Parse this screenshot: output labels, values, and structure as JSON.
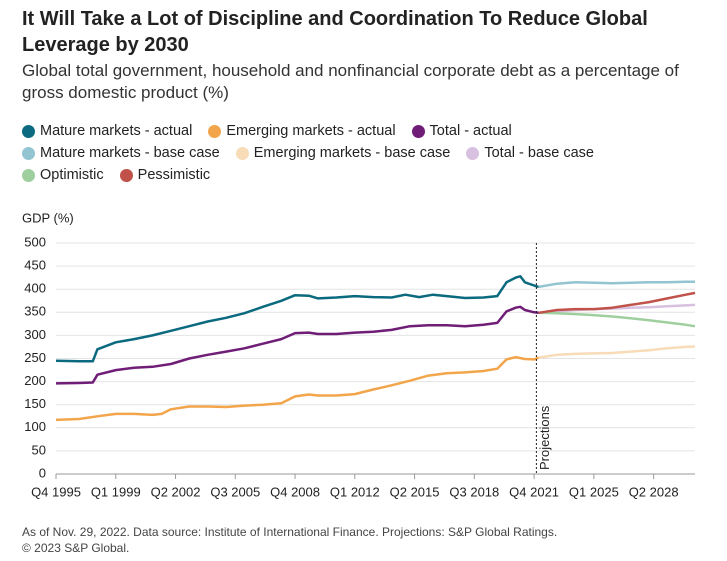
{
  "chart_data": {
    "type": "line",
    "title": "It Will Take a Lot of Discipline and Coordination To Reduce Global Leverage by 2030",
    "subtitle": "Global total government, household and nonfinancial corporate debt as a percentage of gross domestic product (%)",
    "y_label": "GDP (%)",
    "footnote": [
      "As of Nov. 29, 2022. Data source: Institute of International Finance. Projections: S&P Global Ratings.",
      "© 2023 S&P Global."
    ],
    "annotations": [
      {
        "text": "Projections",
        "x": 2021.875
      }
    ],
    "xlim": [
      1995.75,
      2030.5
    ],
    "xticks": [
      {
        "value": 1995.75,
        "label": "Q4 1995"
      },
      {
        "value": 1999.0,
        "label": "Q1 1999"
      },
      {
        "value": 2002.25,
        "label": "Q2 2002"
      },
      {
        "value": 2005.5,
        "label": "Q3 2005"
      },
      {
        "value": 2008.75,
        "label": "Q4 2008"
      },
      {
        "value": 2012.0,
        "label": "Q1 2012"
      },
      {
        "value": 2015.25,
        "label": "Q2 2015"
      },
      {
        "value": 2018.5,
        "label": "Q3 2018"
      },
      {
        "value": 2021.75,
        "label": "Q4 2021"
      },
      {
        "value": 2025.0,
        "label": "Q1 2025"
      },
      {
        "value": 2028.25,
        "label": "Q2 2028"
      }
    ],
    "ylim": [
      0,
      500
    ],
    "yticks": [
      0,
      50,
      100,
      150,
      200,
      250,
      300,
      350,
      400,
      450,
      500
    ],
    "grid": true,
    "series": [
      {
        "name": "Mature markets - actual",
        "color": "#0b6a7f",
        "x": [
          1995.75,
          1997,
          1997.75,
          1998,
          1999,
          2000,
          2001,
          2002,
          2003,
          2004,
          2005,
          2006,
          2007,
          2008,
          2008.75,
          2009.5,
          2010,
          2011,
          2012,
          2013,
          2014,
          2014.75,
          2015.5,
          2016.25,
          2017,
          2018,
          2019,
          2019.75,
          2020.25,
          2020.75,
          2021,
          2021.25,
          2021.75,
          2022
        ],
        "values": [
          245,
          244,
          244,
          270,
          285,
          292,
          300,
          310,
          320,
          330,
          338,
          348,
          362,
          375,
          387,
          386,
          380,
          382,
          385,
          383,
          382,
          388,
          383,
          388,
          385,
          381,
          382,
          385,
          415,
          425,
          428,
          415,
          408,
          405
        ]
      },
      {
        "name": "Emerging markets - actual",
        "color": "#f2a54a",
        "x": [
          1995.75,
          1997,
          1998,
          1999,
          2000,
          2001,
          2001.5,
          2002,
          2003,
          2004,
          2005,
          2006,
          2007,
          2008,
          2008.75,
          2009.5,
          2010,
          2011,
          2012,
          2013,
          2014,
          2015,
          2016,
          2017,
          2018,
          2019,
          2019.75,
          2020.25,
          2020.75,
          2021.25,
          2021.75,
          2022
        ],
        "values": [
          117,
          119,
          125,
          130,
          130,
          128,
          130,
          140,
          146,
          146,
          145,
          148,
          150,
          153,
          168,
          172,
          170,
          170,
          173,
          183,
          192,
          202,
          213,
          218,
          220,
          223,
          228,
          248,
          253,
          249,
          248,
          252
        ]
      },
      {
        "name": "Total - actual",
        "color": "#6f1d77",
        "x": [
          1995.75,
          1997,
          1997.75,
          1998,
          1999,
          2000,
          2001,
          2002,
          2003,
          2004,
          2005,
          2006,
          2007,
          2008,
          2008.75,
          2009.5,
          2010,
          2011,
          2012,
          2013,
          2014,
          2015,
          2016,
          2017,
          2018,
          2019,
          2019.75,
          2020.25,
          2020.75,
          2021,
          2021.25,
          2021.75,
          2022
        ],
        "values": [
          196,
          197,
          198,
          215,
          225,
          230,
          232,
          238,
          250,
          258,
          265,
          272,
          282,
          292,
          305,
          306,
          303,
          303,
          306,
          308,
          312,
          320,
          322,
          322,
          320,
          323,
          327,
          352,
          360,
          362,
          355,
          350,
          349
        ]
      },
      {
        "name": "Mature markets - base case",
        "color": "#93c4d1",
        "x": [
          2022,
          2023,
          2024,
          2025,
          2026,
          2027,
          2028,
          2029,
          2030,
          2030.5
        ],
        "values": [
          405,
          412,
          415,
          414,
          413,
          414,
          415,
          415,
          416,
          416
        ]
      },
      {
        "name": "Emerging markets - base case",
        "color": "#f8dcb8",
        "x": [
          2022,
          2023,
          2024,
          2025,
          2026,
          2027,
          2028,
          2029,
          2030,
          2030.5
        ],
        "values": [
          252,
          258,
          260,
          261,
          262,
          265,
          268,
          272,
          275,
          276
        ]
      },
      {
        "name": "Total - base case",
        "color": "#d8c0e0",
        "x": [
          2022,
          2023,
          2024,
          2025,
          2026,
          2027,
          2028,
          2029,
          2030,
          2030.5
        ],
        "values": [
          349,
          352,
          355,
          357,
          358,
          360,
          361,
          363,
          365,
          366
        ]
      },
      {
        "name": "Optimistic",
        "color": "#9fcf9f",
        "x": [
          2022,
          2023,
          2024,
          2025,
          2026,
          2027,
          2028,
          2029,
          2030,
          2030.5
        ],
        "values": [
          349,
          348,
          346,
          344,
          341,
          337,
          333,
          328,
          323,
          320
        ]
      },
      {
        "name": "Pessimistic",
        "color": "#c0524a",
        "x": [
          2022,
          2023,
          2024,
          2025,
          2026,
          2027,
          2028,
          2029,
          2030,
          2030.5
        ],
        "values": [
          349,
          355,
          357,
          357,
          360,
          366,
          372,
          380,
          388,
          392
        ]
      }
    ]
  }
}
